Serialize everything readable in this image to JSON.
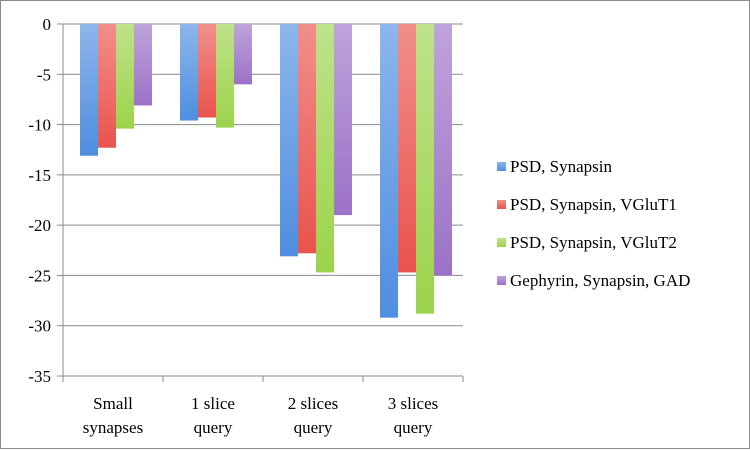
{
  "chart_data": {
    "type": "bar",
    "title": "",
    "xlabel": "",
    "ylabel": "",
    "categories": [
      [
        "Small",
        "synapses"
      ],
      [
        "1 slice",
        "query"
      ],
      [
        "2 slices",
        "query"
      ],
      [
        "3 slices",
        "query"
      ]
    ],
    "series": [
      {
        "name": "PSD, Synapsin",
        "color": "#4f8ee0",
        "values": [
          -13.1,
          -9.6,
          -23.1,
          -29.2
        ]
      },
      {
        "name": "PSD, Synapsin, VGluT1",
        "color": "#e9534d",
        "values": [
          -12.3,
          -9.3,
          -22.8,
          -24.7
        ]
      },
      {
        "name": "PSD, Synapsin, VGluT2",
        "color": "#9cd34b",
        "values": [
          -10.4,
          -10.3,
          -24.7,
          -28.8
        ]
      },
      {
        "name": "Gephyrin, Synapsin, GAD",
        "color": "#9c72c7",
        "values": [
          -8.1,
          -6.0,
          -19.0,
          -25.0
        ]
      }
    ],
    "ylim": [
      -35,
      0
    ],
    "yticks": [
      "0",
      "-5",
      "-10",
      "-15",
      "-20",
      "-25",
      "-30",
      "-35"
    ],
    "ytick_values": [
      0,
      -5,
      -10,
      -15,
      -20,
      -25,
      -30,
      -35
    ],
    "grid": true,
    "legend_position": "right"
  }
}
